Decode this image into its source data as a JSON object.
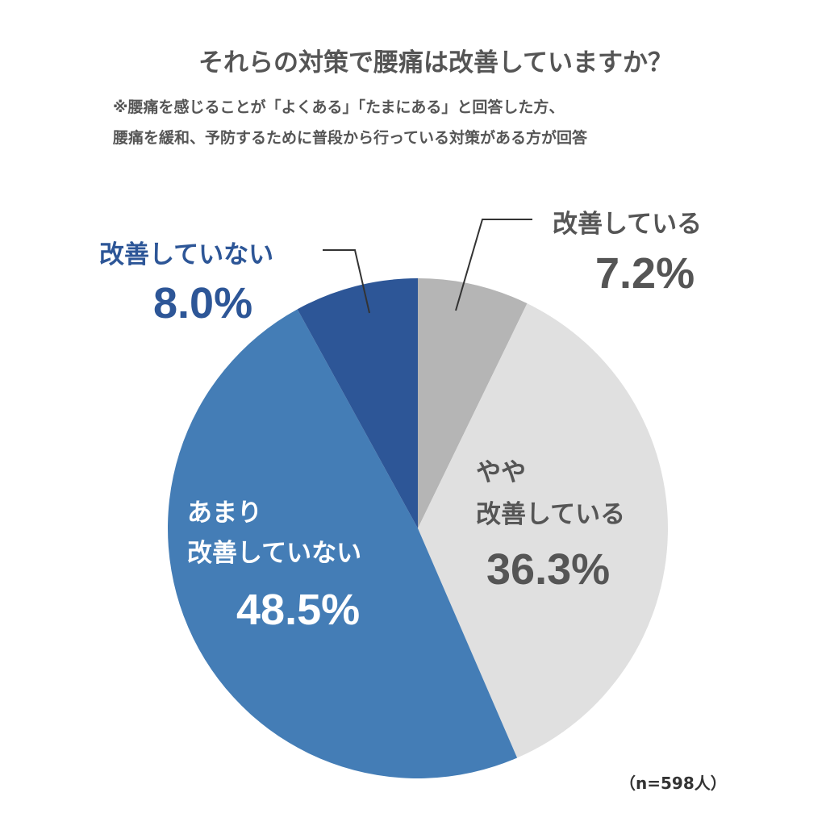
{
  "chart_data": {
    "type": "pie",
    "title": "それらの対策で腰痛は改善していますか？",
    "subtitle": [
      "※腰痛を感じることが「よくある」「たまにある」と回答した方、",
      "腰痛を緩和、予防するために普段から行っている対策がある方が回答"
    ],
    "note": "（n=598人）",
    "slices": [
      {
        "label": "改善している",
        "value": 7.2,
        "display": "7.2%",
        "color": "#b5b5b5"
      },
      {
        "label": "やや\n改善している",
        "label_lines": [
          "やや",
          "改善している"
        ],
        "value": 36.3,
        "display": "36.3%",
        "color": "#e0e0e0"
      },
      {
        "label": "あまり\n改善していない",
        "label_lines": [
          "あまり",
          "改善していない"
        ],
        "value": 48.5,
        "display": "48.5%",
        "color": "#447db6"
      },
      {
        "label": "改善していない",
        "value": 8.0,
        "display": "8.0%",
        "color": "#2d5697"
      }
    ],
    "start": "top",
    "direction": "clockwise"
  }
}
